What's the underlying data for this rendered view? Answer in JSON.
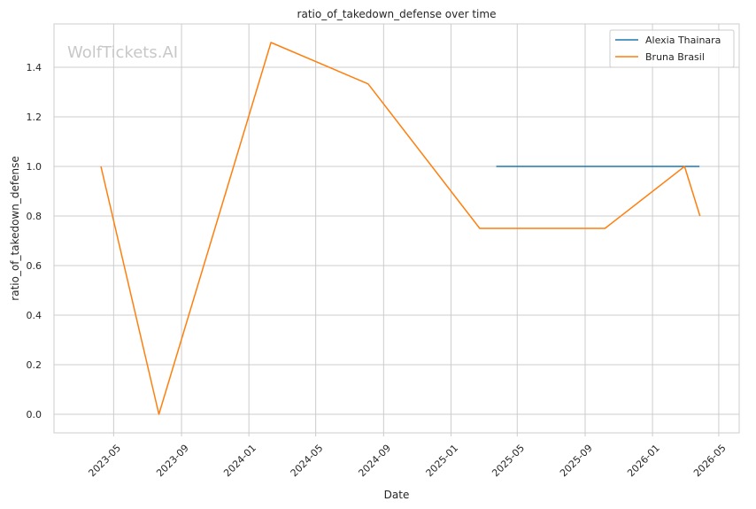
{
  "watermark": "WolfTickets.AI",
  "chart_data": {
    "type": "line",
    "title": "ratio_of_takedown_defense over time",
    "xlabel": "Date",
    "ylabel": "ratio_of_takedown_defense",
    "x_ticks": [
      "2023-05",
      "2023-09",
      "2024-01",
      "2024-05",
      "2024-09",
      "2025-01",
      "2025-05",
      "2025-09",
      "2026-01",
      "2026-05"
    ],
    "y_ticks": [
      "0.0",
      "0.2",
      "0.4",
      "0.6",
      "0.8",
      "1.0",
      "1.2",
      "1.4"
    ],
    "xlim": [
      "2023-01-13",
      "2026-06-07"
    ],
    "ylim": [
      -0.075,
      1.575
    ],
    "grid": true,
    "legend": "top-right",
    "series": [
      {
        "name": "Alexia Thainara",
        "color": "#1f77b4",
        "points": [
          {
            "x": "2025-03-24",
            "y": 1.0
          },
          {
            "x": "2026-03-27",
            "y": 1.0
          }
        ]
      },
      {
        "name": "Bruna Brasil",
        "color": "#ff7f0e",
        "points": [
          {
            "x": "2023-04-08",
            "y": 1.0
          },
          {
            "x": "2023-07-22",
            "y": 0.0
          },
          {
            "x": "2024-02-10",
            "y": 1.5
          },
          {
            "x": "2024-08-04",
            "y": 1.333
          },
          {
            "x": "2025-02-22",
            "y": 0.75
          },
          {
            "x": "2025-10-07",
            "y": 0.75
          },
          {
            "x": "2026-02-28",
            "y": 1.0
          },
          {
            "x": "2026-03-28",
            "y": 0.8
          }
        ]
      }
    ]
  }
}
